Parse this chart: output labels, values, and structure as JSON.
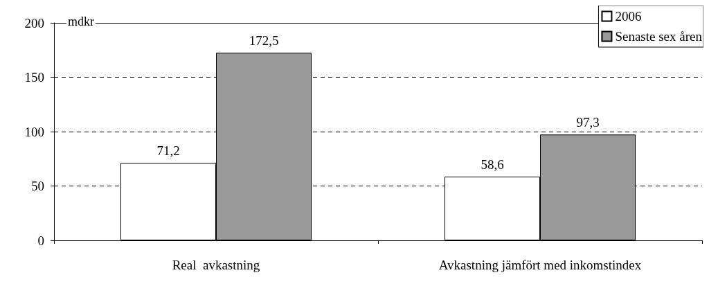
{
  "chart_data": {
    "type": "bar",
    "ylabel": "mdkr",
    "categories": [
      "Real  avkastning",
      "Avkastning jämfört med inkomstindex"
    ],
    "series": [
      {
        "name": "2006",
        "color": "#ffffff",
        "values": [
          71.2,
          58.6
        ],
        "value_labels": [
          "71,2",
          "58,6"
        ]
      },
      {
        "name": "Senaste sex åren",
        "color": "#999999",
        "values": [
          172.5,
          97.3
        ],
        "value_labels": [
          "172,5",
          "97,3"
        ]
      }
    ],
    "ylim": [
      0,
      200
    ],
    "yticks": [
      0,
      50,
      100,
      150,
      200
    ],
    "grid": "y",
    "legend": "top right"
  }
}
